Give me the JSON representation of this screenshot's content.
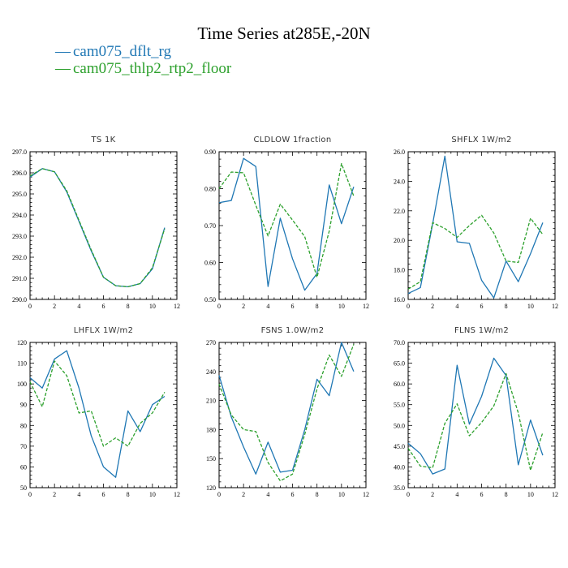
{
  "header": {
    "title": "Time Series at285E,-20N",
    "legend": [
      {
        "label": "cam075_dflt_rg",
        "color": "#1f77b4",
        "marker": "—"
      },
      {
        "label": "cam075_thlp2_rtp2_floor",
        "color": "#2ca02c",
        "marker": "—"
      }
    ]
  },
  "colors": {
    "series1": "#1f77b4",
    "series2": "#2ca02c"
  },
  "chart_data": [
    {
      "type": "line",
      "title": "TS   1K",
      "x": [
        0,
        1,
        2,
        3,
        4,
        5,
        6,
        7,
        8,
        9,
        10,
        11
      ],
      "xlim": [
        0,
        12
      ],
      "xticks": [
        0,
        2,
        4,
        6,
        8,
        10,
        12
      ],
      "ylim": [
        290,
        297
      ],
      "yticks": [
        290,
        291,
        292,
        293,
        294,
        295,
        296,
        297
      ],
      "ytick_labels": [
        "290.0",
        "291.0",
        "292.0",
        "293.0",
        "294.0",
        "295.0",
        "296.0",
        "297.0"
      ],
      "series": [
        {
          "name": "cam075_dflt_rg",
          "style": "solid",
          "values": [
            295.8,
            296.2,
            296.05,
            295.1,
            293.7,
            292.3,
            291.05,
            290.65,
            290.6,
            290.75,
            291.45,
            293.4
          ]
        },
        {
          "name": "cam075_thlp2_rtp2_floor",
          "style": "dashed",
          "values": [
            295.85,
            296.2,
            296.05,
            295.15,
            293.75,
            292.35,
            291.05,
            290.65,
            290.6,
            290.75,
            291.5,
            293.35
          ]
        }
      ]
    },
    {
      "type": "line",
      "title": "CLDLOW   1fraction",
      "x": [
        0,
        1,
        2,
        3,
        4,
        5,
        6,
        7,
        8,
        9,
        10,
        11
      ],
      "xlim": [
        0,
        12
      ],
      "xticks": [
        0,
        2,
        4,
        6,
        8,
        10,
        12
      ],
      "ylim": [
        0.5,
        0.9
      ],
      "yticks": [
        0.5,
        0.6,
        0.7,
        0.8,
        0.9
      ],
      "ytick_labels": [
        "0.50",
        "0.60",
        "0.70",
        "0.80",
        "0.90"
      ],
      "series": [
        {
          "name": "cam075_dflt_rg",
          "style": "solid",
          "values": [
            0.762,
            0.768,
            0.882,
            0.86,
            0.535,
            0.72,
            0.61,
            0.525,
            0.57,
            0.81,
            0.705,
            0.805
          ]
        },
        {
          "name": "cam075_thlp2_rtp2_floor",
          "style": "dashed",
          "values": [
            0.8,
            0.845,
            0.843,
            0.755,
            0.672,
            0.758,
            0.715,
            0.67,
            0.56,
            0.685,
            0.868,
            0.78
          ]
        }
      ]
    },
    {
      "type": "line",
      "title": "SHFLX   1W/m2",
      "x": [
        0,
        1,
        2,
        3,
        4,
        5,
        6,
        7,
        8,
        9,
        10,
        11
      ],
      "xlim": [
        0,
        12
      ],
      "xticks": [
        0,
        2,
        4,
        6,
        8,
        10,
        12
      ],
      "ylim": [
        16,
        26
      ],
      "yticks": [
        16,
        18,
        20,
        22,
        24,
        26
      ],
      "ytick_labels": [
        "16.0",
        "18.0",
        "20.0",
        "22.0",
        "24.0",
        "26.0"
      ],
      "series": [
        {
          "name": "cam075_dflt_rg",
          "style": "solid",
          "values": [
            16.4,
            16.8,
            21.1,
            25.7,
            19.9,
            19.8,
            17.3,
            16.1,
            18.6,
            17.2,
            19.1,
            21.2
          ]
        },
        {
          "name": "cam075_thlp2_rtp2_floor",
          "style": "dashed",
          "values": [
            16.7,
            17.2,
            21.2,
            20.8,
            20.2,
            21.0,
            21.7,
            20.5,
            18.6,
            18.5,
            21.5,
            20.4
          ]
        }
      ]
    },
    {
      "type": "line",
      "title": "LHFLX   1W/m2",
      "x": [
        0,
        1,
        2,
        3,
        4,
        5,
        6,
        7,
        8,
        9,
        10,
        11
      ],
      "xlim": [
        0,
        12
      ],
      "xticks": [
        0,
        2,
        4,
        6,
        8,
        10,
        12
      ],
      "ylim": [
        50,
        120
      ],
      "yticks": [
        50,
        60,
        70,
        80,
        90,
        100,
        110,
        120
      ],
      "ytick_labels": [
        "50",
        "60",
        "70",
        "80",
        "90",
        "100",
        "110",
        "120"
      ],
      "series": [
        {
          "name": "cam075_dflt_rg",
          "style": "solid",
          "values": [
            103,
            98,
            112,
            116,
            98,
            75,
            60,
            55,
            87,
            77,
            90,
            94
          ]
        },
        {
          "name": "cam075_thlp2_rtp2_floor",
          "style": "dashed",
          "values": [
            101,
            89,
            111,
            104,
            86,
            87,
            70,
            74,
            70,
            81,
            86,
            96
          ]
        }
      ]
    },
    {
      "type": "line",
      "title": "FSNS   1.0W/m2",
      "x": [
        0,
        1,
        2,
        3,
        4,
        5,
        6,
        7,
        8,
        9,
        10,
        11
      ],
      "xlim": [
        0,
        12
      ],
      "xticks": [
        0,
        2,
        4,
        6,
        8,
        10,
        12
      ],
      "ylim": [
        120,
        270
      ],
      "yticks": [
        120,
        150,
        180,
        210,
        240,
        270
      ],
      "ytick_labels": [
        "120",
        "150",
        "180",
        "210",
        "240",
        "270"
      ],
      "series": [
        {
          "name": "cam075_dflt_rg",
          "style": "solid",
          "values": [
            236,
            193,
            162,
            134,
            167,
            136,
            138,
            180,
            232,
            215,
            270,
            240
          ]
        },
        {
          "name": "cam075_thlp2_rtp2_floor",
          "style": "dashed",
          "values": [
            227,
            195,
            180,
            178,
            146,
            127,
            134,
            175,
            222,
            257,
            235,
            268
          ]
        }
      ]
    },
    {
      "type": "line",
      "title": "FLNS   1W/m2",
      "x": [
        0,
        1,
        2,
        3,
        4,
        5,
        6,
        7,
        8,
        9,
        10,
        11
      ],
      "xlim": [
        0,
        12
      ],
      "xticks": [
        0,
        2,
        4,
        6,
        8,
        10,
        12
      ],
      "ylim": [
        35,
        70
      ],
      "yticks": [
        35,
        40,
        45,
        50,
        55,
        60,
        65,
        70
      ],
      "ytick_labels": [
        "35.0",
        "40.0",
        "45.0",
        "50.0",
        "55.0",
        "60.0",
        "65.0",
        "70.0"
      ],
      "series": [
        {
          "name": "cam075_dflt_rg",
          "style": "solid",
          "values": [
            45.7,
            43.2,
            38.3,
            39.5,
            64.5,
            50.3,
            57.0,
            66.2,
            62.0,
            40.5,
            51.3,
            42.8
          ]
        },
        {
          "name": "cam075_thlp2_rtp2_floor",
          "style": "dashed",
          "values": [
            44.5,
            40.2,
            39.8,
            50.5,
            55.2,
            47.5,
            50.7,
            54.7,
            62.5,
            53.0,
            39.2,
            48.3
          ]
        }
      ]
    }
  ]
}
